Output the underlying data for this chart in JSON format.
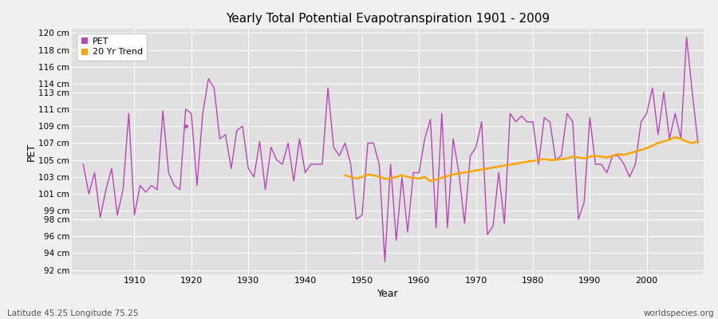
{
  "title": "Yearly Total Potential Evapotranspiration 1901 - 2009",
  "xlabel": "Year",
  "ylabel": "PET",
  "subtitle_left": "Latitude 45.25 Longitude 75.25",
  "subtitle_right": "worldspecies.org",
  "pet_color": "#BB44BB",
  "trend_color": "#FFA500",
  "bg_outer": "#F0F0F0",
  "bg_inner": "#E0E0E0",
  "years": [
    1901,
    1902,
    1903,
    1904,
    1905,
    1906,
    1907,
    1908,
    1909,
    1910,
    1911,
    1912,
    1913,
    1914,
    1915,
    1916,
    1917,
    1918,
    1919,
    1920,
    1921,
    1922,
    1923,
    1924,
    1925,
    1926,
    1927,
    1928,
    1929,
    1930,
    1931,
    1932,
    1933,
    1934,
    1935,
    1936,
    1937,
    1938,
    1939,
    1940,
    1941,
    1942,
    1943,
    1944,
    1945,
    1946,
    1947,
    1948,
    1949,
    1950,
    1951,
    1952,
    1953,
    1954,
    1955,
    1956,
    1957,
    1958,
    1959,
    1960,
    1961,
    1962,
    1963,
    1964,
    1965,
    1966,
    1967,
    1968,
    1969,
    1970,
    1971,
    1972,
    1973,
    1974,
    1975,
    1976,
    1977,
    1978,
    1979,
    1980,
    1981,
    1982,
    1983,
    1984,
    1985,
    1986,
    1987,
    1988,
    1989,
    1990,
    1991,
    1992,
    1993,
    1994,
    1995,
    1996,
    1997,
    1998,
    1999,
    2000,
    2001,
    2002,
    2003,
    2004,
    2005,
    2006,
    2007,
    2008,
    2009
  ],
  "pet": [
    104.5,
    101.0,
    103.5,
    98.2,
    101.5,
    104.0,
    98.5,
    101.5,
    110.5,
    98.5,
    102.0,
    101.2,
    102.0,
    101.5,
    110.8,
    103.5,
    102.0,
    101.5,
    111.0,
    110.5,
    102.0,
    110.5,
    114.6,
    113.5,
    107.5,
    108.0,
    104.0,
    108.5,
    109.0,
    104.0,
    103.0,
    107.2,
    101.5,
    106.5,
    105.0,
    104.5,
    107.0,
    102.5,
    107.5,
    103.5,
    104.5,
    104.5,
    104.5,
    113.5,
    106.5,
    105.5,
    107.0,
    104.5,
    98.0,
    98.5,
    107.0,
    107.0,
    104.5,
    93.0,
    104.5,
    95.5,
    103.0,
    96.5,
    103.5,
    103.5,
    107.5,
    109.8,
    97.0,
    110.5,
    97.0,
    107.5,
    103.5,
    97.5,
    105.5,
    106.5,
    109.5,
    96.2,
    97.2,
    103.5,
    97.5,
    110.5,
    109.5,
    110.2,
    109.5,
    109.5,
    104.5,
    110.0,
    109.5,
    105.0,
    105.5,
    110.5,
    109.5,
    98.0,
    100.0,
    110.0,
    104.5,
    104.5,
    103.5,
    105.5,
    105.5,
    104.5,
    103.0,
    104.5,
    109.5,
    110.5,
    113.5,
    108.0,
    113.0,
    107.5,
    110.5,
    107.5,
    119.5,
    113.0,
    107.0
  ],
  "trend_years": [
    1947,
    1948,
    1949,
    1950,
    1951,
    1952,
    1953,
    1954,
    1955,
    1956,
    1957,
    1958,
    1959,
    1960,
    1961,
    1962,
    1963,
    1964,
    1965,
    1966,
    1979,
    1980,
    1981,
    1982,
    1983,
    1984,
    1985,
    1986,
    1987,
    1988,
    1989,
    1990,
    1991,
    1992,
    1993,
    1994,
    1995,
    1996,
    1997,
    1998,
    1999,
    2000,
    2001,
    2002,
    2003,
    2004,
    2005,
    2006,
    2007,
    2008,
    2009
  ],
  "trend": [
    103.2,
    103.0,
    102.8,
    103.0,
    103.3,
    103.2,
    103.0,
    102.8,
    102.8,
    103.0,
    103.2,
    103.0,
    102.9,
    102.8,
    103.0,
    102.5,
    102.7,
    102.9,
    103.1,
    103.3,
    104.8,
    104.9,
    105.0,
    105.1,
    105.0,
    105.0,
    105.1,
    105.2,
    105.4,
    105.3,
    105.2,
    105.4,
    105.5,
    105.4,
    105.3,
    105.5,
    105.7,
    105.6,
    105.8,
    106.0,
    106.2,
    106.4,
    106.7,
    107.0,
    107.2,
    107.4,
    107.7,
    107.5,
    107.2,
    107.0,
    107.2
  ],
  "yticks": [
    92,
    94,
    96,
    98,
    99,
    101,
    103,
    105,
    107,
    109,
    111,
    113,
    114,
    116,
    118,
    120
  ],
  "ylim": [
    91.5,
    120.5
  ],
  "xlim": [
    1899,
    2010
  ],
  "xticks": [
    1910,
    1920,
    1930,
    1940,
    1950,
    1960,
    1970,
    1980,
    1990,
    2000
  ]
}
